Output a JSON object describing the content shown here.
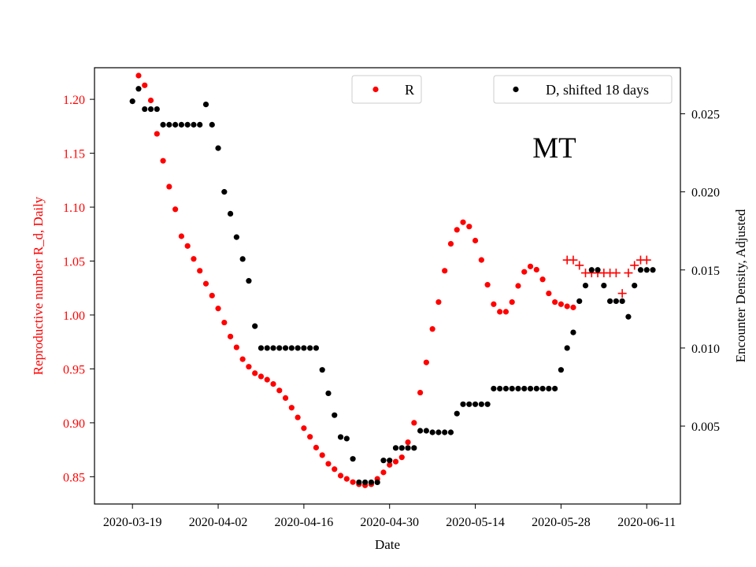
{
  "chart_data": {
    "type": "scatter",
    "state_label": "MT",
    "xlabel": "Date",
    "ylabel_left": "Reproductive number R_d, Daily",
    "ylabel_right": "Encounter Density, Adjusted",
    "x_ticks": [
      "2020-03-19",
      "2020-04-02",
      "2020-04-16",
      "2020-04-30",
      "2020-05-14",
      "2020-05-28",
      "2020-06-11"
    ],
    "left_y_ticks": [
      "0.85",
      "0.90",
      "0.95",
      "1.00",
      "1.05",
      "1.10",
      "1.15",
      "1.20"
    ],
    "right_y_ticks": [
      "0.005",
      "0.010",
      "0.015",
      "0.020",
      "0.025"
    ],
    "x_day_range": [
      -6.2,
      89.5
    ],
    "ylim_left": [
      0.8247,
      1.2293
    ],
    "ylim_right": [
      1e-05,
      0.02795
    ],
    "colors": {
      "R": "#ff0000",
      "D": "#000000"
    },
    "legend_R": {
      "label": "R",
      "placement": "upper-center"
    },
    "legend_D": {
      "label": "D, shifted 18 days",
      "placement": "upper-right"
    },
    "series_R": {
      "name": "R",
      "x": [
        1,
        2,
        3,
        4,
        5,
        6,
        7,
        8,
        9,
        10,
        11,
        12,
        13,
        14,
        15,
        16,
        17,
        18,
        19,
        20,
        21,
        22,
        23,
        24,
        25,
        26,
        27,
        28,
        29,
        30,
        31,
        32,
        33,
        34,
        35,
        36,
        37,
        38,
        39,
        40,
        41,
        42,
        43,
        44,
        45,
        46,
        47,
        48,
        49,
        50,
        51,
        52,
        53,
        54,
        55,
        56,
        57,
        58,
        59,
        60,
        61,
        62,
        63,
        64,
        65,
        66,
        67,
        68,
        69,
        70,
        71,
        72
      ],
      "y": [
        1.222,
        1.213,
        1.199,
        1.168,
        1.143,
        1.119,
        1.098,
        1.073,
        1.064,
        1.052,
        1.041,
        1.029,
        1.018,
        1.006,
        0.993,
        0.98,
        0.97,
        0.959,
        0.952,
        0.946,
        0.943,
        0.94,
        0.936,
        0.93,
        0.923,
        0.914,
        0.905,
        0.895,
        0.887,
        0.877,
        0.87,
        0.862,
        0.857,
        0.851,
        0.848,
        0.845,
        0.843,
        0.842,
        0.843,
        0.848,
        0.854,
        0.861,
        0.864,
        0.868,
        0.882,
        0.9,
        0.928,
        0.956,
        0.987,
        1.012,
        1.041,
        1.066,
        1.079,
        1.086,
        1.082,
        1.069,
        1.051,
        1.028,
        1.01,
        1.003,
        1.003,
        1.012,
        1.027,
        1.04,
        1.045,
        1.042,
        1.033,
        1.02,
        1.012,
        1.01,
        1.008,
        1.007
      ]
    },
    "series_R_projected": {
      "name": "R (projected)",
      "x": [
        71,
        72,
        73,
        74,
        75,
        76,
        77,
        78,
        79,
        80,
        81,
        82,
        83,
        84
      ],
      "y": [
        1.051,
        1.051,
        1.046,
        1.039,
        1.039,
        1.039,
        1.039,
        1.039,
        1.039,
        1.02,
        1.039,
        1.046,
        1.051,
        1.051
      ]
    },
    "series_D": {
      "name": "D, shifted 18 days",
      "x": [
        0,
        1,
        2,
        3,
        4,
        5,
        6,
        7,
        8,
        9,
        10,
        11,
        12,
        13,
        14,
        15,
        16,
        17,
        18,
        19,
        20,
        21,
        22,
        23,
        24,
        25,
        26,
        27,
        28,
        29,
        30,
        31,
        32,
        33,
        34,
        35,
        36,
        37,
        38,
        39,
        40,
        41,
        42,
        43,
        44,
        45,
        46,
        47,
        48,
        49,
        50,
        51,
        52,
        53,
        54,
        55,
        56,
        57,
        58,
        59,
        60,
        61,
        62,
        63,
        64,
        65,
        66,
        67,
        68,
        69,
        70,
        71,
        72,
        73,
        74,
        75,
        76,
        77,
        78,
        79,
        80,
        81,
        82,
        83,
        84,
        85
      ],
      "y": [
        0.0258,
        0.0266,
        0.0253,
        0.0253,
        0.0253,
        0.0243,
        0.0243,
        0.0243,
        0.0243,
        0.0243,
        0.0243,
        0.0243,
        0.0256,
        0.0243,
        0.0228,
        0.02,
        0.0186,
        0.0171,
        0.0157,
        0.0143,
        0.0114,
        0.01,
        0.01,
        0.01,
        0.01,
        0.01,
        0.01,
        0.01,
        0.01,
        0.01,
        0.01,
        0.0086,
        0.0071,
        0.0057,
        0.0043,
        0.0042,
        0.0029,
        0.0014,
        0.0014,
        0.0014,
        0.0014,
        0.0028,
        0.0028,
        0.0036,
        0.0036,
        0.0036,
        0.0036,
        0.0047,
        0.0047,
        0.0046,
        0.0046,
        0.0046,
        0.0046,
        0.0058,
        0.0064,
        0.0064,
        0.0064,
        0.0064,
        0.0064,
        0.0074,
        0.0074,
        0.0074,
        0.0074,
        0.0074,
        0.0074,
        0.0074,
        0.0074,
        0.0074,
        0.0074,
        0.0074,
        0.0086,
        0.01,
        0.011,
        0.013,
        0.014,
        0.015,
        0.015,
        0.014,
        0.013,
        0.013,
        0.013,
        0.012,
        0.014,
        0.015,
        0.015,
        0.015
      ]
    }
  }
}
